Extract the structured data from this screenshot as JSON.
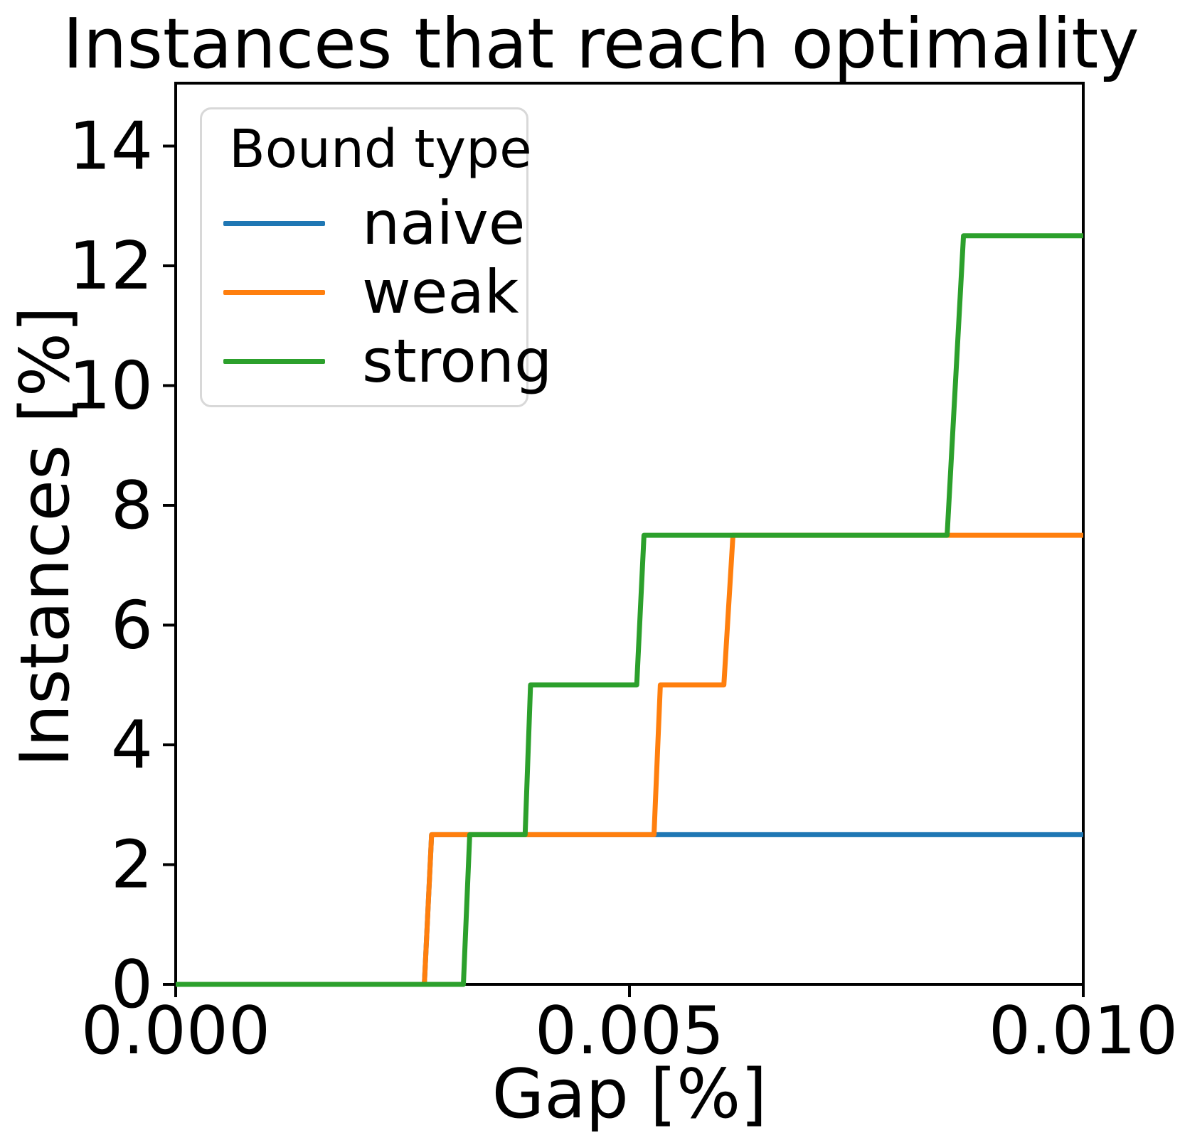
{
  "title": "Instances that reach optimality",
  "axes": {
    "x_label": "Gap [%]",
    "y_label": "Instances [%]"
  },
  "legend": {
    "title": "Bound type",
    "items": [
      {
        "label": "naive",
        "color": "#1f77b4"
      },
      {
        "label": "weak",
        "color": "#ff7f0e"
      },
      {
        "label": "strong",
        "color": "#2ca02c"
      }
    ]
  },
  "chart_data": {
    "type": "line",
    "title": "Instances that reach optimality",
    "xlabel": "Gap [%]",
    "ylabel": "Instances [%]",
    "xlim": [
      0.0,
      0.01
    ],
    "ylim": [
      0.0,
      15.05
    ],
    "grid": false,
    "legend_position": "upper left",
    "legend_title": "Bound type",
    "x_ticks": [
      {
        "value": 0.0,
        "label": "0.000"
      },
      {
        "value": 0.005,
        "label": "0.005"
      },
      {
        "value": 0.01,
        "label": "0.010"
      }
    ],
    "y_ticks": [
      {
        "value": 0,
        "label": "0"
      },
      {
        "value": 2,
        "label": "2"
      },
      {
        "value": 4,
        "label": "4"
      },
      {
        "value": 6,
        "label": "6"
      },
      {
        "value": 8,
        "label": "8"
      },
      {
        "value": 10,
        "label": "10"
      },
      {
        "value": 12,
        "label": "12"
      },
      {
        "value": 14,
        "label": "14"
      }
    ],
    "series": [
      {
        "name": "naive",
        "color": "#1f77b4",
        "points": [
          [
            0.0,
            0.0
          ],
          [
            0.00274,
            0.0
          ],
          [
            0.00282,
            2.5
          ],
          [
            0.01,
            2.5
          ]
        ]
      },
      {
        "name": "weak",
        "color": "#ff7f0e",
        "points": [
          [
            0.0,
            0.0
          ],
          [
            0.00274,
            0.0
          ],
          [
            0.00282,
            2.5
          ],
          [
            0.00527,
            2.5
          ],
          [
            0.00534,
            5.0
          ],
          [
            0.00604,
            5.0
          ],
          [
            0.00614,
            7.5
          ],
          [
            0.01,
            7.5
          ]
        ]
      },
      {
        "name": "strong",
        "color": "#2ca02c",
        "points": [
          [
            0.0,
            0.0
          ],
          [
            0.00317,
            0.0
          ],
          [
            0.00324,
            2.5
          ],
          [
            0.00385,
            2.5
          ],
          [
            0.00391,
            5.0
          ],
          [
            0.00508,
            5.0
          ],
          [
            0.00516,
            7.5
          ],
          [
            0.0085,
            7.5
          ],
          [
            0.00868,
            12.5
          ],
          [
            0.01,
            12.5
          ]
        ]
      }
    ]
  }
}
